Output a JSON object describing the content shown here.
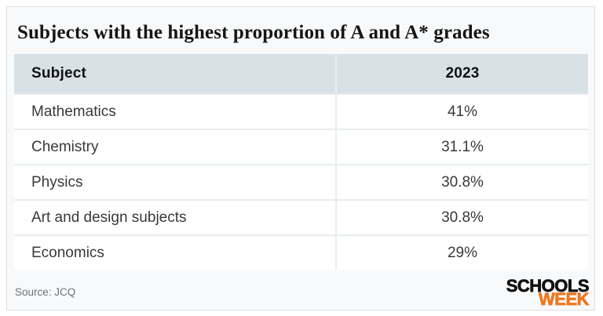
{
  "title": "Subjects with the highest proportion of A and A* grades",
  "table": {
    "columns": [
      "Subject",
      "2023"
    ],
    "rows": [
      {
        "subject": "Mathematics",
        "value": "41%"
      },
      {
        "subject": "Chemistry",
        "value": "31.1%"
      },
      {
        "subject": "Physics",
        "value": "30.8%"
      },
      {
        "subject": "Art and design subjects",
        "value": "30.8%"
      },
      {
        "subject": "Economics",
        "value": "29%"
      }
    ]
  },
  "footer": {
    "source": "Source: JCQ",
    "logo_line1": "SCHOOLS",
    "logo_line2": "WEEK"
  },
  "colors": {
    "card_bg": "#f8f9fa",
    "card_border": "#dce1e3",
    "header_bg": "#d8e1e6",
    "row_bg": "#ffffff",
    "separator": "#e7edf0",
    "title_text": "#161616",
    "cell_text": "#37393b",
    "source_text": "#6e7274",
    "logo_black": "#111111",
    "logo_orange": "#f0761c"
  },
  "chart_data": {
    "type": "table",
    "title": "Subjects with the highest proportion of A and A* grades",
    "columns": [
      "Subject",
      "2023"
    ],
    "categories": [
      "Mathematics",
      "Chemistry",
      "Physics",
      "Art and design subjects",
      "Economics"
    ],
    "values": [
      41,
      31.1,
      30.8,
      30.8,
      29
    ],
    "unit": "%",
    "source": "JCQ"
  }
}
